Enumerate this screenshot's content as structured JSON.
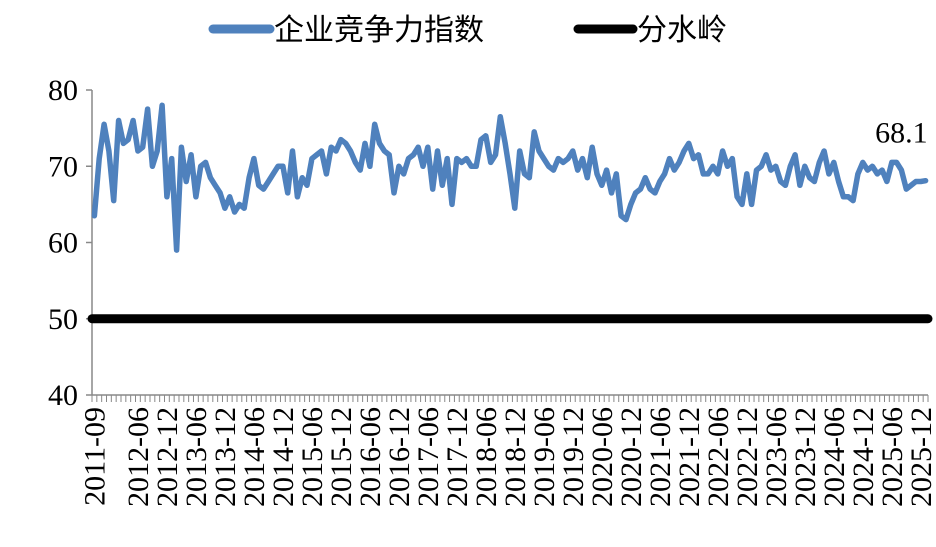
{
  "chart_data": {
    "type": "line",
    "title": "",
    "xlabel": "",
    "ylabel": "",
    "ylim": [
      40,
      80
    ],
    "yticks": [
      40,
      50,
      60,
      70,
      80
    ],
    "grid": false,
    "legend_position": "top",
    "x_tick_labels": [
      "2011-09",
      "2012-06",
      "2012-12",
      "2013-06",
      "2013-12",
      "2014-06",
      "2014-12",
      "2015-06",
      "2015-12",
      "2016-06",
      "2016-12",
      "2017-06",
      "2017-12",
      "2018-06",
      "2018-12",
      "2019-06",
      "2019-12",
      "2020-06",
      "2020-12",
      "2021-06",
      "2021-12",
      "2022-06",
      "2022-12",
      "2023-06",
      "2023-12",
      "2024-06",
      "2024-12",
      "2025-06",
      "2025-12"
    ],
    "x_start": "2011-09",
    "series": [
      {
        "name": "企业竞争力指数",
        "color": "#4F81BD",
        "values": [
          63.5,
          71.0,
          75.5,
          72.0,
          65.5,
          76.0,
          73.0,
          73.5,
          76.0,
          72.0,
          72.5,
          77.5,
          70.0,
          72.0,
          78.0,
          66.0,
          71.0,
          59.0,
          72.5,
          68.0,
          71.5,
          66.0,
          70.0,
          70.5,
          68.5,
          67.5,
          66.5,
          64.5,
          66.0,
          64.0,
          65.0,
          64.5,
          68.5,
          71.0,
          67.5,
          67.0,
          68.0,
          69.0,
          70.0,
          70.0,
          66.5,
          72.0,
          66.0,
          68.5,
          67.5,
          71.0,
          71.5,
          72.0,
          69.0,
          72.5,
          72.0,
          73.5,
          73.0,
          72.0,
          70.5,
          69.5,
          73.0,
          70.0,
          75.5,
          73.0,
          72.0,
          71.5,
          66.5,
          70.0,
          69.0,
          71.0,
          71.5,
          72.5,
          70.0,
          72.5,
          67.0,
          72.0,
          67.5,
          71.0,
          65.0,
          71.0,
          70.5,
          71.0,
          70.0,
          70.0,
          73.5,
          74.0,
          70.5,
          71.5,
          76.5,
          73.0,
          69.0,
          64.5,
          72.0,
          69.0,
          68.5,
          74.5,
          72.0,
          71.0,
          70.0,
          69.5,
          71.0,
          70.5,
          71.0,
          72.0,
          69.5,
          71.0,
          68.5,
          72.5,
          69.0,
          67.5,
          69.5,
          66.5,
          69.0,
          63.5,
          63.0,
          65.0,
          66.5,
          67.0,
          68.5,
          67.0,
          66.5,
          68.0,
          69.0,
          71.0,
          69.5,
          70.5,
          72.0,
          73.0,
          71.0,
          71.5,
          69.0,
          69.0,
          70.0,
          69.0,
          72.0,
          70.0,
          71.0,
          66.0,
          65.0,
          69.0,
          65.0,
          69.5,
          70.0,
          71.5,
          69.5,
          70.0,
          68.0,
          67.5,
          70.0,
          71.5,
          67.5,
          70.0,
          68.5,
          68.0,
          70.5,
          72.0,
          69.0,
          70.5,
          68.0,
          66.0,
          66.0,
          65.5,
          69.0,
          70.5,
          69.5,
          70.0,
          69.0,
          69.5,
          68.0,
          70.5,
          70.5,
          69.5,
          67.0,
          67.5,
          68.0,
          68.0,
          68.1
        ]
      },
      {
        "name": "分水岭",
        "color": "#000000",
        "values": [
          50,
          50
        ]
      }
    ],
    "data_labels": [
      {
        "series": "企业竞争力指数",
        "text": "68.1"
      }
    ]
  }
}
